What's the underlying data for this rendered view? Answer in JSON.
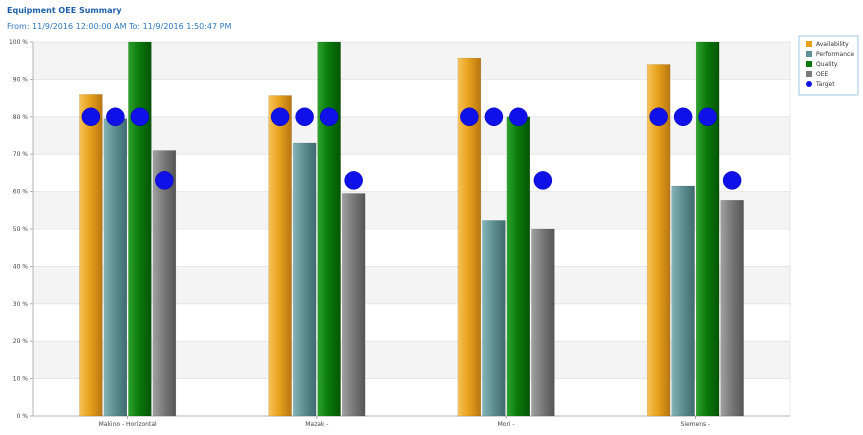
{
  "chart_data": {
    "type": "bar",
    "title": "Equipment OEE Summary",
    "subtitle": "From: 11/9/2016 12:00:00 AM To: 11/9/2016 1:50:47 PM",
    "categories": [
      "Makino - Horizontal",
      "Mazak -",
      "Mori -",
      "Siemens -"
    ],
    "series": [
      {
        "name": "Availability",
        "color": "#e8a21c",
        "values": [
          86,
          85.7,
          95.7,
          94
        ]
      },
      {
        "name": "Performance",
        "color": "#5f9094",
        "values": [
          79.5,
          73,
          52.3,
          61.5
        ]
      },
      {
        "name": "Quality",
        "color": "#0b7a0b",
        "values": [
          100,
          100,
          80,
          100
        ]
      },
      {
        "name": "OEE",
        "color": "#7b7b7b",
        "values": [
          71,
          59.5,
          50,
          57.7
        ]
      }
    ],
    "target": {
      "name": "Target",
      "color": "#1010e8",
      "values": [
        [
          80,
          80,
          80,
          63
        ],
        [
          80,
          80,
          80,
          63
        ],
        [
          80,
          80,
          80,
          63
        ],
        [
          80,
          80,
          80,
          63
        ]
      ]
    },
    "y_ticks": [
      "0 %",
      "10 %",
      "20 %",
      "30 %",
      "40 %",
      "50 %",
      "60 %",
      "70 %",
      "80 %",
      "90 %",
      "100 %"
    ],
    "ylim": [
      0,
      100
    ],
    "grid": true,
    "legend_position": "top-right"
  }
}
